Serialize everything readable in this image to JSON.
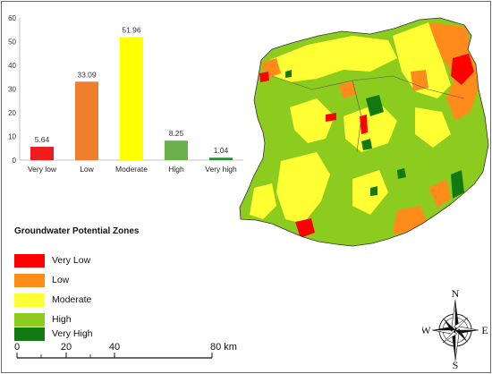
{
  "chart_data": {
    "type": "bar",
    "categories": [
      "Very low",
      "Low",
      "Moderate",
      "High",
      "Very high"
    ],
    "values": [
      5.64,
      33.09,
      51.96,
      8.25,
      1.04
    ],
    "colors": [
      "#ee1c1c",
      "#f07f2d",
      "#ffff00",
      "#6ab04c",
      "#2e8b3a"
    ],
    "ylim": [
      0,
      60
    ],
    "yticks": [
      0,
      10,
      20,
      30,
      40,
      50,
      60
    ],
    "data_labels": [
      "5.64",
      "33.09",
      "51.96",
      "8.25",
      "1.04"
    ],
    "grid": false,
    "title": "",
    "xlabel": "",
    "ylabel": ""
  },
  "legend": {
    "title": "Groundwater Potential Zones",
    "items": [
      {
        "label": "Very Low",
        "color": "#ff0000"
      },
      {
        "label": "Low",
        "color": "#ff8c1a"
      },
      {
        "label": "Moderate",
        "color": "#ffff33"
      },
      {
        "label": "High",
        "color": "#8ccc1e"
      },
      {
        "label": "Very High",
        "color": "#137a13"
      }
    ]
  },
  "scale_bar": {
    "labels": [
      "0",
      "20",
      "40",
      "80 km"
    ]
  },
  "compass": {
    "north": "N",
    "south": "S",
    "east": "E",
    "west": "W"
  },
  "map": {
    "zone_colors": {
      "very_low": "#ff0000",
      "low": "#ff8c1a",
      "moderate": "#ffff33",
      "high": "#8ccc1e",
      "very_high": "#137a13"
    }
  }
}
